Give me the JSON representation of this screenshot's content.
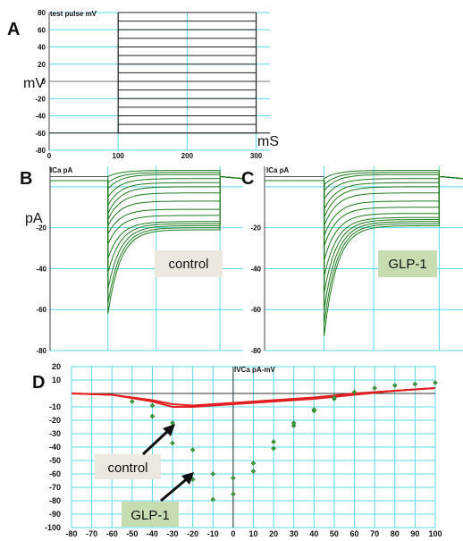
{
  "colors": {
    "grid": "#5ad8e4",
    "trace": "#1f7a1f",
    "red": "#e02020",
    "marker": "#3a9a3a",
    "label_bg_gray": "#ece8e0",
    "label_bg_green": "#c7dcb0"
  },
  "chart_data": [
    {
      "id": "A",
      "type": "line",
      "panel_label": "A",
      "header": "test pulse  mV",
      "ylabel": "mV",
      "xlabel": "mS",
      "xlim": [
        0,
        320
      ],
      "ylim": [
        -80,
        80
      ],
      "xticks": [
        "0",
        "100",
        "200",
        "300"
      ],
      "yticks": [
        "80",
        "60",
        "40",
        "20",
        "0",
        "-20",
        "-40",
        "-60",
        "-80"
      ],
      "holding_mV": -60,
      "pulse_start_ms": 100,
      "pulse_end_ms": 300,
      "step_levels_mV": [
        80,
        70,
        60,
        50,
        40,
        30,
        20,
        10,
        0,
        -10,
        -20,
        -30,
        -40,
        -50,
        -60
      ]
    },
    {
      "id": "B",
      "type": "line",
      "panel_label": "B",
      "header": "ICa  pA",
      "ylabel": "pA",
      "label": "control",
      "ylim": [
        -80,
        10
      ],
      "yticks": [
        "-20",
        "-40",
        "-60",
        "-80"
      ],
      "pulse_start_ms": 100,
      "pulse_end_ms": 300,
      "peak_pA": [
        -62,
        -57,
        -50,
        -42,
        -35,
        -28,
        -23,
        -19,
        -16,
        -13,
        -9,
        -5,
        -1,
        2,
        5
      ],
      "steady_pA": [
        -21,
        -20,
        -19,
        -18,
        -17,
        -14,
        -11,
        -7,
        -3,
        0,
        2,
        4,
        6,
        7,
        8
      ]
    },
    {
      "id": "C",
      "type": "line",
      "panel_label": "C",
      "header": "ICa  pA",
      "label": "GLP-1",
      "ylim": [
        -80,
        10
      ],
      "yticks": [
        "-20",
        "-40",
        "-60",
        "-80"
      ],
      "pulse_start_ms": 100,
      "pulse_end_ms": 300,
      "peak_pA": [
        -73,
        -67,
        -60,
        -52,
        -44,
        -36,
        -29,
        -24,
        -19,
        -15,
        -11,
        -6,
        -2,
        1,
        4
      ],
      "steady_pA": [
        -19,
        -18,
        -17,
        -16,
        -15,
        -13,
        -10,
        -7,
        -3,
        0,
        2,
        4,
        6,
        7,
        8
      ]
    },
    {
      "id": "D",
      "type": "scatter",
      "panel_label": "D",
      "header": "IVCa  pA-mV",
      "xlim": [
        -80,
        100
      ],
      "ylim": [
        -100,
        20
      ],
      "xticks": [
        "-80",
        "-70",
        "-60",
        "-50",
        "-40",
        "-30",
        "-20",
        "-10",
        "0",
        "10",
        "20",
        "30",
        "40",
        "50",
        "60",
        "70",
        "80",
        "90",
        "100"
      ],
      "yticks": [
        "20",
        "10",
        "-10",
        "-20",
        "-30",
        "-40",
        "-50",
        "-60",
        "-70",
        "-80",
        "-90",
        "-100"
      ],
      "points": [
        {
          "x": -50,
          "y": -6
        },
        {
          "x": -40,
          "y": -17
        },
        {
          "x": -40,
          "y": -9
        },
        {
          "x": -30,
          "y": -37
        },
        {
          "x": -30,
          "y": -22
        },
        {
          "x": -20,
          "y": -64
        },
        {
          "x": -20,
          "y": -42
        },
        {
          "x": -10,
          "y": -79
        },
        {
          "x": -10,
          "y": -60
        },
        {
          "x": 0,
          "y": -75
        },
        {
          "x": 0,
          "y": -63
        },
        {
          "x": 10,
          "y": -58
        },
        {
          "x": 10,
          "y": -52
        },
        {
          "x": 20,
          "y": -41
        },
        {
          "x": 20,
          "y": -36
        },
        {
          "x": 30,
          "y": -24
        },
        {
          "x": 30,
          "y": -22
        },
        {
          "x": 40,
          "y": -13
        },
        {
          "x": 40,
          "y": -12
        },
        {
          "x": 50,
          "y": -4
        },
        {
          "x": 50,
          "y": -3
        },
        {
          "x": 60,
          "y": 1
        },
        {
          "x": 70,
          "y": 4
        },
        {
          "x": 80,
          "y": 6
        },
        {
          "x": 90,
          "y": 7
        },
        {
          "x": 100,
          "y": 8
        }
      ],
      "series": [
        {
          "x": [
            -80,
            -60,
            -40,
            -30,
            -20,
            -10,
            0,
            20,
            40,
            60,
            80,
            100
          ],
          "y": [
            0,
            -1,
            -6,
            -10,
            -10,
            -9,
            -8,
            -6,
            -4,
            -1,
            2,
            4
          ]
        },
        {
          "x": [
            -80,
            -60,
            -40,
            -30,
            -20,
            -10,
            0,
            20,
            40,
            60,
            80,
            100
          ],
          "y": [
            0,
            -1,
            -5,
            -8,
            -9,
            -8,
            -7,
            -5,
            -3,
            0,
            2,
            4
          ]
        }
      ],
      "annotations": [
        "control",
        "GLP-1"
      ]
    }
  ]
}
